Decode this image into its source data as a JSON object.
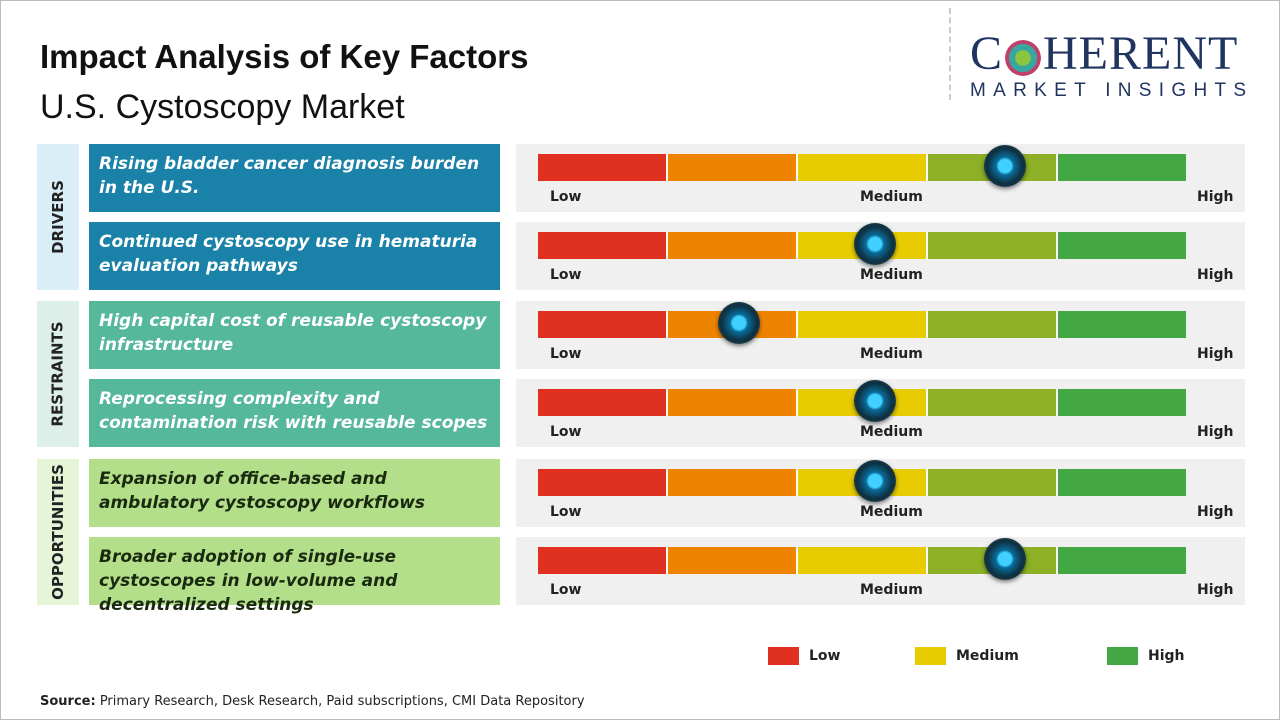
{
  "header": {
    "title": "Impact Analysis of Key Factors",
    "subtitle": "U.S. Cystoscopy Market"
  },
  "logo": {
    "line1_a": "C",
    "line1_b": "HERENT",
    "line2": "MARKET INSIGHTS"
  },
  "colors": {
    "low": "#e03020",
    "medium_low": "#ee8300",
    "medium": "#e6cc00",
    "medium_high": "#8db026",
    "high": "#43a843",
    "drivers": "#1a82a8",
    "restraints": "#55b89a",
    "opportunities": "#b4df8a",
    "drivers_cat": "#d9eef7",
    "restraints_cat": "#dcefe8",
    "opportunities_cat": "#e6f5d8"
  },
  "scale_labels": {
    "low": "Low",
    "medium": "Medium",
    "high": "High"
  },
  "categories": [
    {
      "label": "DRIVERS",
      "factors": [
        {
          "text": "Rising bladder cancer diagnosis burden in the U.S.",
          "impact": 0.72
        },
        {
          "text": "Continued cystoscopy use in hematuria evaluation pathways",
          "impact": 0.52
        }
      ]
    },
    {
      "label": "RESTRAINTS",
      "factors": [
        {
          "text": "High capital cost of reusable cystoscopy infrastructure",
          "impact": 0.31
        },
        {
          "text": "Reprocessing complexity and contamination risk with reusable scopes",
          "impact": 0.52
        }
      ]
    },
    {
      "label": "OPPORTUNITIES",
      "factors": [
        {
          "text": "Expansion of office-based and ambulatory cystoscopy workflows",
          "impact": 0.52
        },
        {
          "text": "Broader adoption of single-use cystoscopes in low-volume and decentralized settings",
          "impact": 0.72
        }
      ]
    }
  ],
  "legend": [
    {
      "label": "Low",
      "color": "#e03020"
    },
    {
      "label": "Medium",
      "color": "#e6cc00"
    },
    {
      "label": "High",
      "color": "#43a843"
    }
  ],
  "source": {
    "label": "Source:",
    "text": " Primary Research, Desk Research, Paid subscriptions, CMI Data Repository"
  }
}
